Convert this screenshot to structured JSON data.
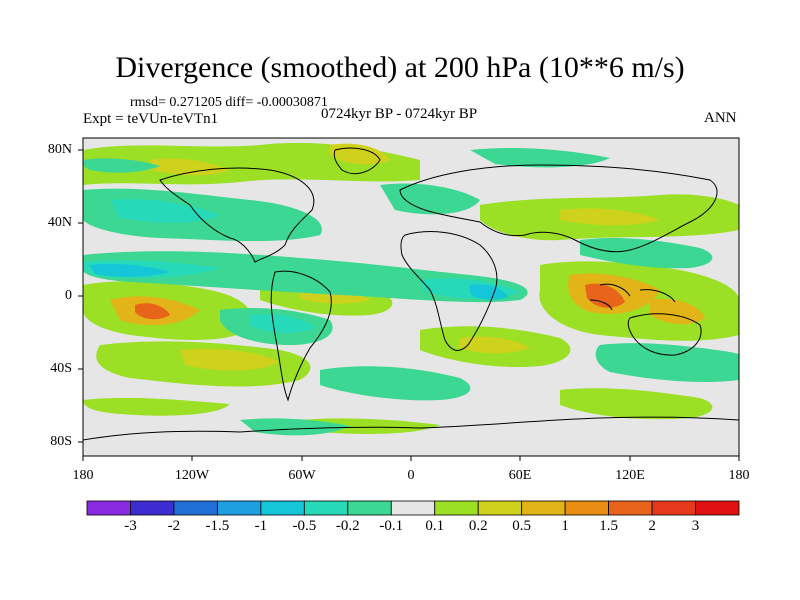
{
  "title": "Divergence (smoothed) at 200 hPa (10**6 m/s)",
  "stats": "rmsd= 0.271205  diff= -0.00030871",
  "experiment": "Expt = teVUn-teVTn1",
  "period": "0724kyr BP - 0724kyr BP",
  "season": "ANN",
  "latitude_ticks": [
    "80N",
    "40N",
    "0",
    "40S",
    "80S"
  ],
  "longitude_ticks": [
    "180",
    "120W",
    "60W",
    "0",
    "60E",
    "120E",
    "180"
  ],
  "colorbar": {
    "labels": [
      "-3",
      "-2",
      "-1.5",
      "-1",
      "-0.5",
      "-0.2",
      "-0.1",
      "0.1",
      "0.2",
      "0.5",
      "1",
      "1.5",
      "2",
      "3"
    ],
    "colors": [
      "#8a2be2",
      "#3d2ccf",
      "#1f6fd6",
      "#1d9fe0",
      "#14c6d8",
      "#26d9b8",
      "#3cd893",
      "#e6e6e6",
      "#9be024",
      "#cfd21c",
      "#e2b417",
      "#e88e12",
      "#e7641a",
      "#e4391b",
      "#e01111"
    ]
  }
}
